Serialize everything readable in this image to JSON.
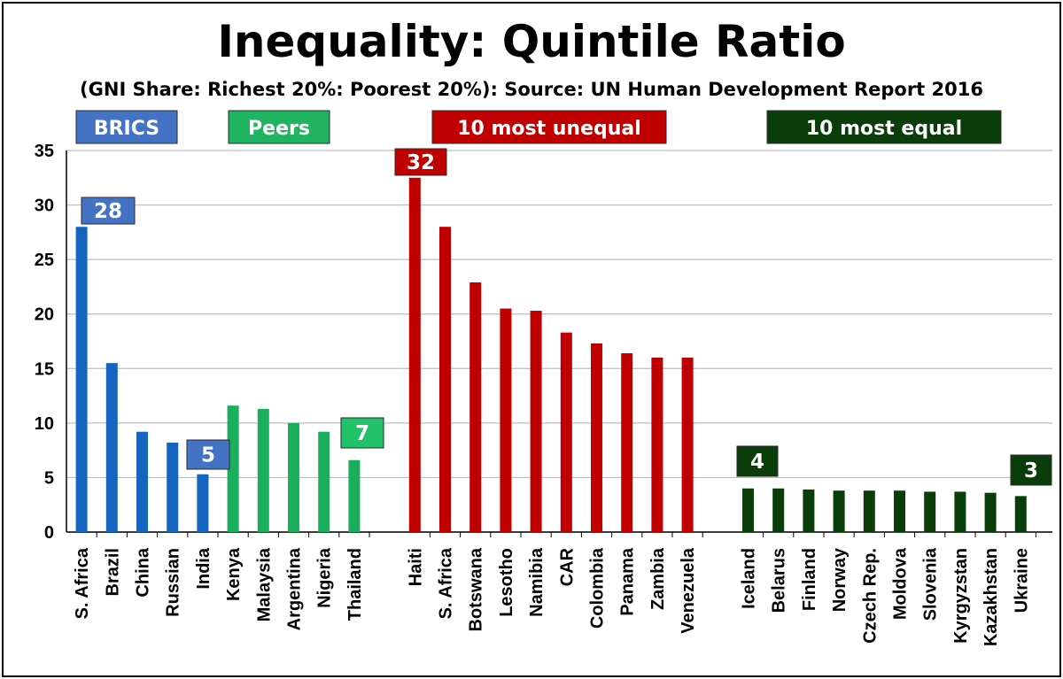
{
  "chart_data": {
    "type": "bar",
    "title": "Inequality: Quintile Ratio",
    "subtitle": "(GNI Share: Richest 20%: Poorest 20%):  Source: UN Human Development Report 2016",
    "xlabel": "",
    "ylabel": "",
    "ylim": [
      0,
      35
    ],
    "yticks": [
      0,
      5,
      10,
      15,
      20,
      25,
      30,
      35
    ],
    "grid": true,
    "groups": [
      {
        "name": "BRICS",
        "color": "#1565C0",
        "label_bg": "#4472C4",
        "categories": [
          "S. Africa",
          "Brazil",
          "China",
          "Russian",
          "India"
        ],
        "values": [
          28,
          15.5,
          9.2,
          8.2,
          5.3
        ]
      },
      {
        "name": "Peers",
        "color": "#1AAF5D",
        "label_bg": "#21B460",
        "categories": [
          "Kenya",
          "Malaysia",
          "Argentina",
          "Nigeria",
          "Thailand"
        ],
        "values": [
          11.6,
          11.3,
          10.0,
          9.2,
          6.6
        ]
      },
      {
        "name": "10 most unequal",
        "color": "#C00000",
        "label_bg": "#C00000",
        "categories": [
          "Haiti",
          "S. Africa",
          "Botswana",
          "Lesotho",
          "Namibia",
          "CAR",
          "Colombia",
          "Panama",
          "Zambia",
          "Venezuela"
        ],
        "values": [
          32.5,
          28,
          22.9,
          20.5,
          20.3,
          18.3,
          17.3,
          16.4,
          16.0,
          16.0
        ]
      },
      {
        "name": "10 most equal",
        "color": "#0B3D0B",
        "label_bg": "#0B3D0B",
        "categories": [
          "Iceland",
          "Belarus",
          "Finland",
          "Norway",
          "Czech Rep.",
          "Moldova",
          "Slovenia",
          "Kyrgyzstan",
          "Kazakhstan",
          "Ukraine"
        ],
        "values": [
          4.0,
          4.0,
          3.9,
          3.8,
          3.8,
          3.8,
          3.7,
          3.7,
          3.6,
          3.3
        ]
      }
    ],
    "annotations": [
      {
        "text": "28",
        "group": 0,
        "index": 0,
        "bg": "#4472C4"
      },
      {
        "text": "5",
        "group": 0,
        "index": 4,
        "bg": "#4472C4"
      },
      {
        "text": "7",
        "group": 1,
        "index": 4,
        "bg": "#21C26A"
      },
      {
        "text": "32",
        "group": 2,
        "index": 0,
        "bg": "#C00000"
      },
      {
        "text": "4",
        "group": 3,
        "index": 0,
        "bg": "#0B3D0B"
      },
      {
        "text": "3",
        "group": 3,
        "index": 9,
        "bg": "#0B3D0B"
      }
    ]
  }
}
